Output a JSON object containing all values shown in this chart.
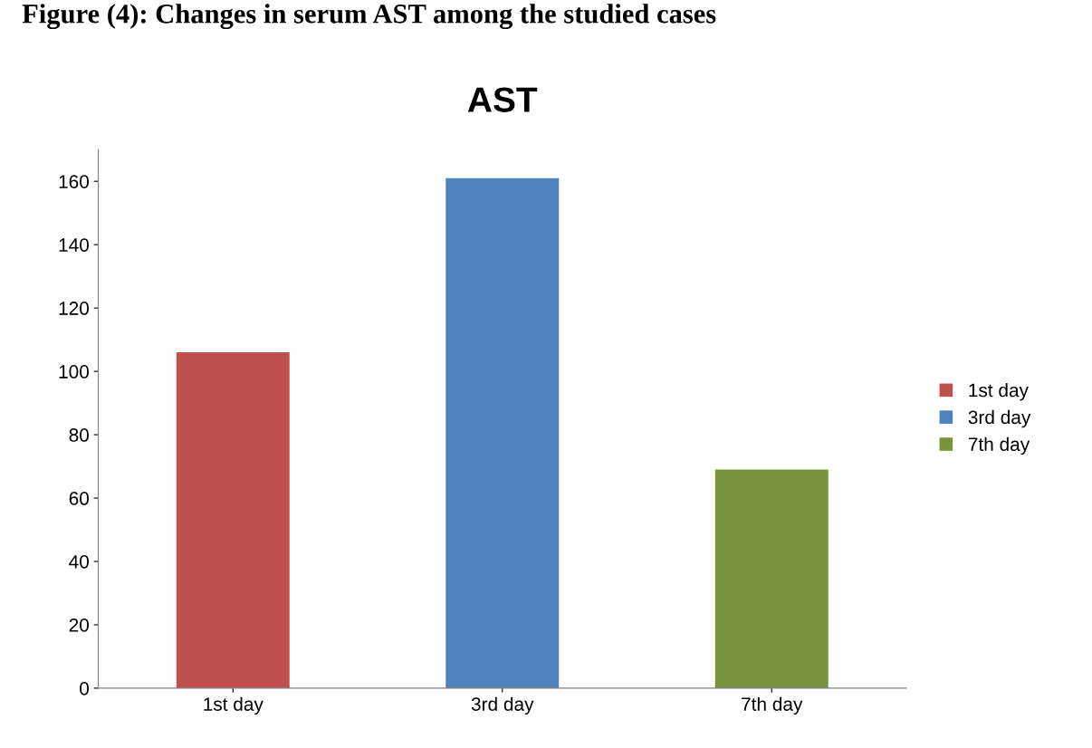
{
  "chart_data": {
    "type": "bar",
    "title": "AST",
    "annotations": [
      "Figure (4): Changes in serum AST among the studied cases"
    ],
    "categories": [
      "1st day",
      "3rd day",
      "7th day"
    ],
    "series": [
      {
        "name": "1st day",
        "color": "#c0504d",
        "values": [
          106,
          null,
          null
        ]
      },
      {
        "name": "3rd day",
        "color": "#4f81bd",
        "values": [
          null,
          161,
          null
        ]
      },
      {
        "name": "7th day",
        "color": "#77933c",
        "values": [
          null,
          null,
          69
        ]
      }
    ],
    "ylim": [
      0,
      170
    ],
    "yticks": [
      0,
      20,
      40,
      60,
      80,
      100,
      120,
      140,
      160
    ],
    "grid": false,
    "legend": "right"
  }
}
